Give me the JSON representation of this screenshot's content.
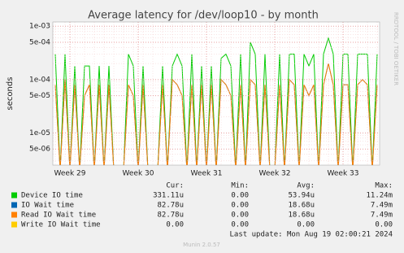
{
  "chart_data": {
    "type": "line",
    "title": "Average latency for /dev/loop10 - by month",
    "y_label": "seconds",
    "side_label": "RRDTOOL / TOBI OETIKER",
    "log_scale": true,
    "grid": true,
    "categories": [
      null,
      null,
      null,
      "Week 29",
      null,
      null,
      null,
      null,
      null,
      null,
      null,
      null,
      null,
      null,
      null,
      null,
      null,
      "Week 30",
      null,
      null,
      null,
      null,
      null,
      null,
      null,
      null,
      null,
      null,
      null,
      null,
      null,
      "Week 31",
      null,
      null,
      null,
      null,
      null,
      null,
      null,
      null,
      null,
      null,
      null,
      null,
      null,
      "Week 32",
      null,
      null,
      null,
      null,
      null,
      null,
      null,
      null,
      null,
      null,
      null,
      null,
      null,
      "Week 33",
      null,
      null,
      null,
      null,
      null,
      null,
      null
    ],
    "ylim": [
      2.5e-06,
      0.0012
    ],
    "yticks": [
      {
        "value": 0.001,
        "label": "1e-03"
      },
      {
        "value": 0.0005,
        "label": "5e-04"
      },
      {
        "value": 0.0001,
        "label": "1e-04"
      },
      {
        "value": 5e-05,
        "label": "5e-05"
      },
      {
        "value": 1e-05,
        "label": "1e-05"
      },
      {
        "value": 5e-06,
        "label": "5e-06"
      }
    ],
    "stat_headers": [
      "Cur:",
      "Min:",
      "Avg:",
      "Max:"
    ],
    "series": [
      {
        "name": "Device IO time",
        "color": "#00cc00",
        "stats": [
          "331.11u",
          "0.00",
          "53.94u",
          "11.24m"
        ],
        "values": [
          0.0003,
          0,
          0.0003,
          0,
          0.00018,
          0,
          0.00018,
          0.00018,
          0,
          0.00018,
          0,
          0.00018,
          0,
          0,
          0,
          0.0003,
          0.00018,
          0,
          0.00018,
          0,
          0,
          0,
          0.00018,
          0,
          0.00018,
          0.0003,
          0.00018,
          0,
          0.0003,
          0,
          0.00018,
          0,
          0.00018,
          0,
          0.00025,
          0.0003,
          0.00018,
          0,
          0.0003,
          0,
          0.0005,
          0.0003,
          0,
          0.0003,
          0,
          0,
          0.0003,
          0,
          0.0003,
          0.0003,
          0,
          0.0003,
          0.00018,
          0.0003,
          0,
          0.0003,
          0.0006,
          0.0003,
          0,
          0.0003,
          0.0003,
          0,
          0.0003,
          0.0003,
          0.0003,
          0,
          0.0003
        ]
      },
      {
        "name": "IO Wait time",
        "color": "#0066b3",
        "stats": [
          "82.78u",
          "0.00",
          "18.68u",
          "7.49m"
        ],
        "values": [
          8e-05,
          0,
          0.0001,
          0,
          8e-05,
          0,
          5e-05,
          8e-05,
          0,
          8e-05,
          0,
          8e-05,
          0,
          0,
          0,
          8e-05,
          5e-05,
          0,
          8e-05,
          0,
          0,
          0,
          8e-05,
          0,
          0.0001,
          8e-05,
          5e-05,
          0,
          8e-05,
          0,
          8e-05,
          0,
          8e-05,
          0,
          0.0001,
          8e-05,
          5e-05,
          0,
          8e-05,
          0,
          0.0001,
          8e-05,
          0,
          8e-05,
          0,
          0,
          8e-05,
          0,
          0.0001,
          8e-05,
          0,
          8e-05,
          5e-05,
          8e-05,
          0,
          8e-05,
          0.0002,
          8e-05,
          0,
          8e-05,
          8e-05,
          0,
          8e-05,
          0.0001,
          8e-05,
          0,
          8e-05
        ]
      },
      {
        "name": "Read IO Wait time",
        "color": "#ff8000",
        "stats": [
          "82.78u",
          "0.00",
          "18.68u",
          "7.49m"
        ],
        "values": [
          8e-05,
          0,
          0.0001,
          0,
          8e-05,
          0,
          5e-05,
          8e-05,
          0,
          8e-05,
          0,
          8e-05,
          0,
          0,
          0,
          8e-05,
          5e-05,
          0,
          8e-05,
          0,
          0,
          0,
          8e-05,
          0,
          0.0001,
          8e-05,
          5e-05,
          0,
          8e-05,
          0,
          8e-05,
          0,
          8e-05,
          0,
          0.0001,
          8e-05,
          5e-05,
          0,
          8e-05,
          0,
          0.0001,
          8e-05,
          0,
          8e-05,
          0,
          0,
          8e-05,
          0,
          0.0001,
          8e-05,
          0,
          8e-05,
          5e-05,
          8e-05,
          0,
          8e-05,
          0.0002,
          8e-05,
          0,
          8e-05,
          8e-05,
          0,
          8e-05,
          0.0001,
          8e-05,
          0,
          8e-05
        ]
      },
      {
        "name": "Write IO Wait time",
        "color": "#ffcc00",
        "stats": [
          "0.00",
          "0.00",
          "0.00",
          "0.00"
        ],
        "values": [
          0,
          0,
          0,
          0,
          0,
          0,
          0,
          0,
          0,
          0,
          0,
          0,
          0,
          0,
          0,
          0,
          0,
          0,
          0,
          0,
          0,
          0,
          0,
          0,
          0,
          0,
          0,
          0,
          0,
          0,
          0,
          0,
          0,
          0,
          0,
          0,
          0,
          0,
          0,
          0,
          0,
          0,
          0,
          0,
          0,
          0,
          0,
          0,
          0,
          0,
          0,
          0,
          0,
          0,
          0,
          0,
          0,
          0,
          0,
          0,
          0,
          0,
          0,
          0,
          0,
          0,
          0
        ]
      }
    ],
    "last_update": "Last update: Mon Aug 19 02:00:21 2024",
    "footer": "Munin 2.0.57"
  }
}
